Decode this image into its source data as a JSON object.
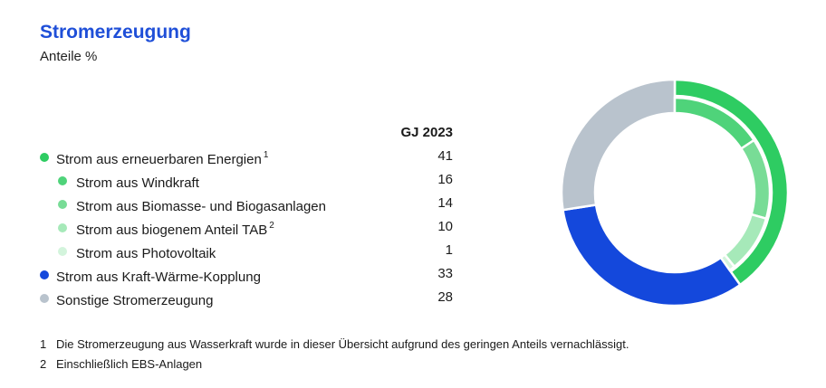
{
  "title": "Stromerzeugung",
  "subtitle": "Anteile %",
  "column_header": "GJ 2023",
  "rows": [
    {
      "label": "Strom aus erneuerbaren Energien",
      "sup": "1",
      "value": "41",
      "level": 0,
      "color": "#2ecc62"
    },
    {
      "label": "Strom aus Windkraft",
      "sup": "",
      "value": "16",
      "level": 1,
      "color": "#4fd37a"
    },
    {
      "label": "Strom aus Biomasse- und Biogasanlagen",
      "sup": "",
      "value": "14",
      "level": 1,
      "color": "#78dc96"
    },
    {
      "label": "Strom aus biogenem Anteil TAB",
      "sup": "2",
      "value": "10",
      "level": 1,
      "color": "#a6e9b9"
    },
    {
      "label": "Strom aus Photovoltaik",
      "sup": "",
      "value": "1",
      "level": 1,
      "color": "#d3f4dc"
    },
    {
      "label": "Strom aus Kraft-Wärme-Kopplung",
      "sup": "",
      "value": "33",
      "level": 0,
      "color": "#1448dc"
    },
    {
      "label": "Sonstige Stromerzeugung",
      "sup": "",
      "value": "28",
      "level": 0,
      "color": "#b9c3cd"
    }
  ],
  "footnotes": [
    {
      "num": "1",
      "text": "Die Stromerzeugung aus Wasserkraft wurde in dieser Übersicht aufgrund des geringen Anteils vernachlässigt."
    },
    {
      "num": "2",
      "text": "Einschließlich EBS-Anlagen"
    }
  ],
  "chart_data": {
    "type": "pie",
    "title": "Stromerzeugung",
    "subtitle": "Anteile %",
    "outer_ring": {
      "categories": [
        "Strom aus erneuerbaren Energien",
        "Strom aus Kraft-Wärme-Kopplung",
        "Sonstige Stromerzeugung"
      ],
      "values": [
        41,
        33,
        28
      ],
      "colors": [
        "#2ecc62",
        "#1448dc",
        "#b9c3cd"
      ]
    },
    "inner_ring": {
      "parent": "Strom aus erneuerbaren Energien",
      "categories": [
        "Strom aus Windkraft",
        "Strom aus Biomasse- und Biogasanlagen",
        "Strom aus biogenem Anteil TAB",
        "Strom aus Photovoltaik"
      ],
      "values": [
        16,
        14,
        10,
        1
      ],
      "colors": [
        "#4fd37a",
        "#78dc96",
        "#a6e9b9",
        "#d3f4dc"
      ]
    },
    "legend_position": "left"
  }
}
